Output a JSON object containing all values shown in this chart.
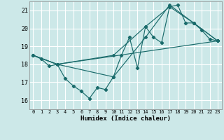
{
  "xlabel": "Humidex (Indice chaleur)",
  "background_color": "#cce8e8",
  "grid_color": "#ffffff",
  "line_color": "#1a6b6b",
  "xlim": [
    -0.5,
    23.5
  ],
  "ylim": [
    15.5,
    21.5
  ],
  "yticks": [
    16,
    17,
    18,
    19,
    20,
    21
  ],
  "xticks": [
    0,
    1,
    2,
    3,
    4,
    5,
    6,
    7,
    8,
    9,
    10,
    11,
    12,
    13,
    14,
    15,
    16,
    17,
    18,
    19,
    20,
    21,
    22,
    23
  ],
  "main_line": {
    "x": [
      0,
      1,
      2,
      3,
      4,
      5,
      6,
      7,
      8,
      9,
      10,
      11,
      12,
      13,
      14,
      15,
      16,
      17,
      18,
      19,
      20,
      21,
      22,
      23
    ],
    "y": [
      18.5,
      18.3,
      17.9,
      18.0,
      17.2,
      16.8,
      16.5,
      16.1,
      16.7,
      16.6,
      17.3,
      18.5,
      19.5,
      17.8,
      20.1,
      19.5,
      19.2,
      21.2,
      21.3,
      20.3,
      20.3,
      19.9,
      19.4,
      19.3
    ]
  },
  "extra_lines": [
    {
      "x": [
        0,
        3,
        23
      ],
      "y": [
        18.5,
        18.0,
        19.3
      ]
    },
    {
      "x": [
        0,
        3,
        10,
        14,
        17,
        20,
        23
      ],
      "y": [
        18.5,
        18.0,
        18.5,
        20.1,
        21.2,
        20.3,
        19.3
      ]
    },
    {
      "x": [
        0,
        3,
        10,
        14,
        17,
        20,
        23
      ],
      "y": [
        18.5,
        18.0,
        17.3,
        19.5,
        21.3,
        20.3,
        19.3
      ]
    }
  ]
}
